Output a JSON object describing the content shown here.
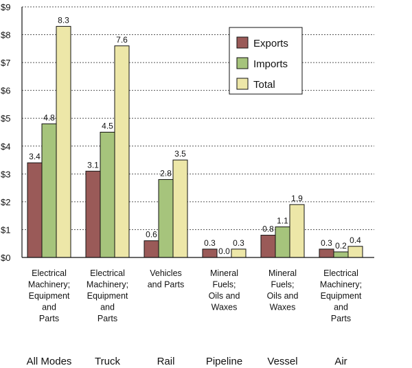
{
  "chart_data": {
    "type": "bar",
    "ylim": [
      0,
      9
    ],
    "y_ticks": [
      "$0",
      "$1",
      "$2",
      "$3",
      "$4",
      "$5",
      "$6",
      "$7",
      "$8",
      "$9"
    ],
    "grid": "horizontal-dashed",
    "legend_position": "top-right",
    "categories": [
      "All Modes",
      "Truck",
      "Rail",
      "Pipeline",
      "Vessel",
      "Air"
    ],
    "commodities": [
      [
        "Electrical",
        "Machinery;",
        "Equipment",
        "and",
        "Parts"
      ],
      [
        "Electrical",
        "Machinery;",
        "Equipment",
        "and",
        "Parts"
      ],
      [
        "Vehicles",
        "and Parts"
      ],
      [
        "Mineral",
        "Fuels;",
        "Oils and",
        "Waxes"
      ],
      [
        "Mineral",
        "Fuels;",
        "Oils and",
        "Waxes"
      ],
      [
        "Electrical",
        "Machinery;",
        "Equipment",
        "and",
        "Parts"
      ]
    ],
    "series": [
      {
        "name": "Exports",
        "color": "#9a5a58",
        "values": [
          3.4,
          3.1,
          0.6,
          0.3,
          0.8,
          0.3
        ],
        "labels": [
          "3.4",
          "3.1",
          "0.6",
          "0.3",
          "0.8",
          "0.3"
        ]
      },
      {
        "name": "Imports",
        "color": "#a6c47c",
        "values": [
          4.8,
          4.5,
          2.8,
          0.0,
          1.1,
          0.2
        ],
        "labels": [
          "4.8",
          "4.5",
          "2.8",
          "0.0",
          "1.1",
          "0.2"
        ]
      },
      {
        "name": "Total",
        "color": "#ede7a8",
        "values": [
          8.3,
          7.6,
          3.5,
          0.3,
          1.9,
          0.4
        ],
        "labels": [
          "8.3",
          "7.6",
          "3.5",
          "0.3",
          "1.9",
          "0.4"
        ]
      }
    ]
  }
}
